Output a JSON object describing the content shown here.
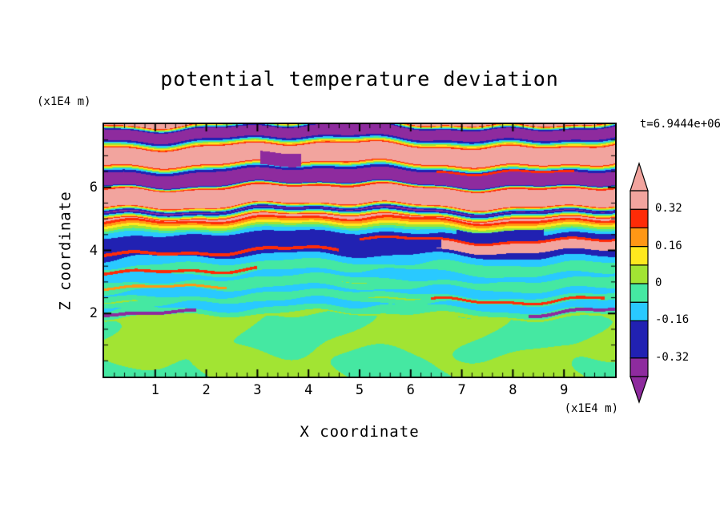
{
  "background": "#ffffff",
  "chart_data": {
    "type": "heatmap",
    "title": "potential temperature deviation",
    "xlabel": "X coordinate",
    "ylabel": "Z coordinate",
    "x_unit": "(x1E4 m)",
    "z_unit": "(x1E4 m)",
    "time_label": "t=6.9444e+06",
    "xlim": [
      0,
      10
    ],
    "zlim": [
      0,
      8
    ],
    "x_major_ticks": [
      1,
      2,
      3,
      4,
      5,
      6,
      7,
      8,
      9
    ],
    "x_tick_labels": [
      "1",
      "2",
      "3",
      "4",
      "5",
      "6",
      "7",
      "8",
      "9"
    ],
    "x_minor_step": 0.2,
    "z_major_ticks": [
      2,
      4,
      6
    ],
    "z_tick_labels": [
      "2",
      "4",
      "6"
    ],
    "z_minor_step": 0.5,
    "grid": false,
    "colorbar": {
      "position": "right",
      "vmin": -0.4,
      "vmax": 0.4,
      "tick_labels": [
        "0.32",
        "0.16",
        "0",
        "-0.16",
        "-0.32"
      ],
      "tick_values": [
        0.32,
        0.16,
        0,
        -0.16,
        -0.32
      ],
      "segments": [
        {
          "v0": -0.4,
          "v1": -0.32,
          "color": "#8e2b9e"
        },
        {
          "v0": -0.32,
          "v1": -0.16,
          "color": "#2121b2"
        },
        {
          "v0": -0.16,
          "v1": -0.08,
          "color": "#29c9ff"
        },
        {
          "v0": -0.08,
          "v1": 0.0,
          "color": "#45e8a2"
        },
        {
          "v0": 0.0,
          "v1": 0.08,
          "color": "#a2e433"
        },
        {
          "v0": 0.08,
          "v1": 0.16,
          "color": "#ffe81e"
        },
        {
          "v0": 0.16,
          "v1": 0.24,
          "color": "#ff9715"
        },
        {
          "v0": 0.24,
          "v1": 0.32,
          "color": "#ff2b07"
        },
        {
          "v0": 0.32,
          "v1": 0.4,
          "color": "#f2a49e"
        }
      ],
      "arrow_low_color": "#8e2b9e",
      "arrow_high_color": "#f2a49e"
    },
    "field": {
      "description": "Horizontally-banded stratified wave layers above z=2 (alternating pink/purple bands with thin red, orange, cyan interfaces; navy minima near z=4-4.5), turbulent convective green/yellow-green region below z=2.",
      "profile": [
        [
          0.0,
          0.05
        ],
        [
          1.9,
          0.04
        ],
        [
          2.1,
          -0.06
        ],
        [
          2.3,
          -0.11
        ],
        [
          2.48,
          -0.02
        ],
        [
          2.7,
          -0.12
        ],
        [
          2.95,
          -0.02
        ],
        [
          3.2,
          -0.12
        ],
        [
          3.45,
          -0.03
        ],
        [
          3.75,
          -0.13
        ],
        [
          4.2,
          -0.3
        ],
        [
          4.6,
          -0.13
        ],
        [
          4.9,
          0.2
        ],
        [
          5.05,
          0.37
        ],
        [
          5.27,
          -0.37
        ],
        [
          5.45,
          0.37
        ],
        [
          5.95,
          0.37
        ],
        [
          6.02,
          0.26
        ],
        [
          6.12,
          -0.37
        ],
        [
          6.5,
          -0.37
        ],
        [
          6.62,
          -0.12
        ],
        [
          6.78,
          0.37
        ],
        [
          7.3,
          0.37
        ],
        [
          7.58,
          -0.37
        ],
        [
          7.88,
          -0.37
        ],
        [
          8.05,
          0.37
        ],
        [
          8.4,
          0.37
        ]
      ],
      "streaks": [
        {
          "z": 6.55,
          "hw": 0.035,
          "x0": 6.5,
          "x1": 9.2,
          "v": 0.3
        },
        {
          "z": 4.35,
          "hw": 0.04,
          "x0": 5.0,
          "x1": 10.0,
          "v": 0.26
        },
        {
          "z": 3.97,
          "hw": 0.05,
          "x0": 0.0,
          "x1": 4.6,
          "v": 0.28
        },
        {
          "z": 3.4,
          "hw": 0.045,
          "x0": 0.0,
          "x1": 3.0,
          "v": 0.26
        },
        {
          "z": 2.92,
          "hw": 0.04,
          "x0": 0.0,
          "x1": 2.4,
          "v": 0.2
        },
        {
          "z": 2.46,
          "hw": 0.04,
          "x0": 6.4,
          "x1": 9.8,
          "v": 0.24
        },
        {
          "z": 2.1,
          "hw": 0.05,
          "x0": 0.0,
          "x1": 1.8,
          "v": -0.36
        },
        {
          "z": 2.08,
          "hw": 0.05,
          "x0": 8.3,
          "x1": 10.0,
          "v": -0.36
        }
      ],
      "patches": [
        {
          "z0": 4.02,
          "z1": 4.35,
          "x0": 6.5,
          "x1": 10.0,
          "v": 0.36
        },
        {
          "z0": 4.05,
          "z1": 4.5,
          "x0": 4.6,
          "x1": 6.6,
          "v": -0.3
        },
        {
          "z0": 4.45,
          "z1": 4.72,
          "x0": 6.9,
          "x1": 8.6,
          "v": -0.3
        },
        {
          "z0": 6.62,
          "z1": 7.05,
          "x0": 3.05,
          "x1": 3.85,
          "v": -0.37
        }
      ],
      "bottom": {
        "z_top": 1.9,
        "base_value": 0.05,
        "blob_value": -0.03,
        "threshold": 0.1
      }
    }
  }
}
